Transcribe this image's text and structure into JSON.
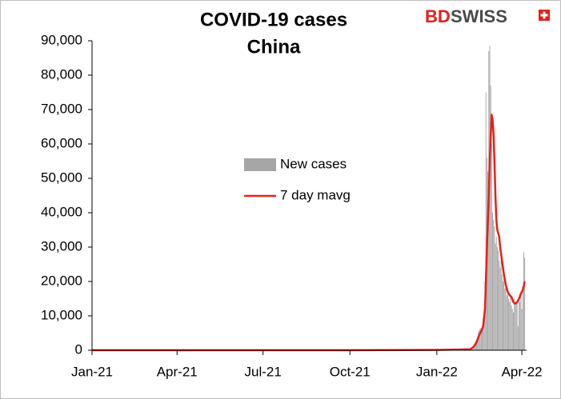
{
  "logo": {
    "left": "BD",
    "right": "SWISS"
  },
  "chart_data": {
    "type": "bar-line",
    "title": "COVID-19 cases",
    "subtitle": "China",
    "xlim": [
      0,
      460
    ],
    "xticks": [
      {
        "value": 0,
        "label": "Jan-21"
      },
      {
        "value": 90,
        "label": "Apr-21"
      },
      {
        "value": 181,
        "label": "Jul-21"
      },
      {
        "value": 273,
        "label": "Oct-21"
      },
      {
        "value": 365,
        "label": "Jan-22"
      },
      {
        "value": 455,
        "label": "Apr-22"
      }
    ],
    "ylim": [
      0,
      90000
    ],
    "yticks": [
      {
        "value": 0,
        "label": "0"
      },
      {
        "value": 10000,
        "label": "10,000"
      },
      {
        "value": 20000,
        "label": "20,000"
      },
      {
        "value": 30000,
        "label": "30,000"
      },
      {
        "value": 40000,
        "label": "40,000"
      },
      {
        "value": 50000,
        "label": "50,000"
      },
      {
        "value": 60000,
        "label": "60,000"
      },
      {
        "value": 70000,
        "label": "70,000"
      },
      {
        "value": 80000,
        "label": "80,000"
      },
      {
        "value": 90000,
        "label": "90,000"
      }
    ],
    "grid": false,
    "legend": "center",
    "series": [
      {
        "name": "New cases",
        "kind": "bar",
        "color": "#a6a6a6",
        "x": [
          400,
          401,
          402,
          403,
          404,
          405,
          406,
          407,
          408,
          409,
          410,
          411,
          412,
          413,
          414,
          415,
          416,
          417,
          418,
          419,
          420,
          421,
          422,
          423,
          424,
          425,
          426,
          427,
          428,
          429,
          430,
          431,
          432,
          433,
          434,
          435,
          436,
          437,
          438,
          439,
          440,
          441,
          442,
          443,
          444,
          445,
          446,
          447,
          448,
          449,
          450,
          451,
          452,
          453,
          454,
          455,
          456,
          457,
          458
        ],
        "values": [
          500,
          700,
          900,
          1200,
          1500,
          2000,
          2500,
          3200,
          4000,
          5500,
          6000,
          6500,
          5000,
          7000,
          9000,
          12000,
          20000,
          75000,
          56000,
          52000,
          87000,
          88500,
          77000,
          60000,
          40000,
          38000,
          36000,
          31000,
          33000,
          30000,
          29000,
          26000,
          24000,
          27000,
          22000,
          20000,
          21000,
          18000,
          19000,
          16000,
          17000,
          15000,
          14000,
          16000,
          13000,
          12000,
          11000,
          15000,
          13000,
          14000,
          14500,
          7000,
          15000,
          14000,
          16000,
          12000,
          18000,
          28500,
          27000
        ]
      },
      {
        "name": "7 day mavg",
        "kind": "line",
        "color": "#e32119",
        "x": [
          0,
          90,
          180,
          270,
          365,
          390,
          400,
          402,
          404,
          406,
          408,
          410,
          412,
          414,
          416,
          418,
          420,
          421,
          422,
          423,
          424,
          425,
          426,
          427,
          428,
          429,
          430,
          431,
          432,
          434,
          436,
          438,
          440,
          442,
          444,
          446,
          448,
          450,
          452,
          454,
          456,
          458
        ],
        "values": [
          0,
          0,
          0,
          0,
          100,
          200,
          300,
          600,
          1000,
          1800,
          3000,
          4500,
          5500,
          7000,
          12000,
          30000,
          45000,
          55000,
          62000,
          68500,
          67000,
          63000,
          55000,
          45000,
          38000,
          35000,
          34000,
          33000,
          30000,
          26000,
          22000,
          19000,
          17000,
          16000,
          15500,
          14000,
          13500,
          14000,
          15000,
          16500,
          17500,
          20000
        ]
      }
    ]
  }
}
